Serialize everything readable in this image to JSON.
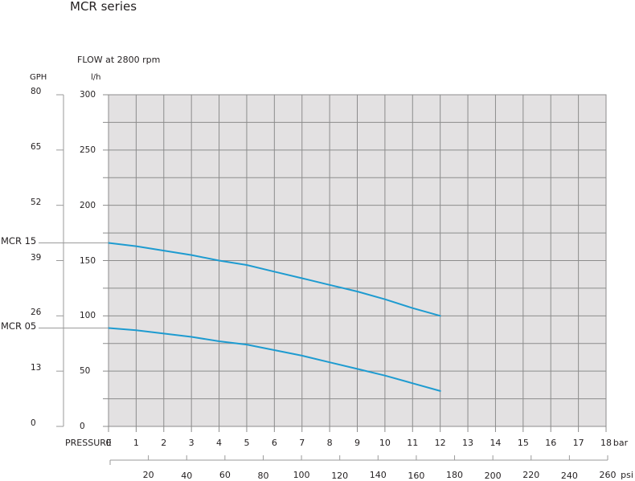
{
  "header": {
    "title": "MCR series",
    "subtitle": "FLOW at 2800 rpm"
  },
  "axes": {
    "gph_unit": "GPH",
    "lh_unit": "l/h",
    "pressure_label": "PRESSURE",
    "bar_unit": "bar",
    "psi_unit": "psi"
  },
  "colors": {
    "plot_bg": "#e3e1e2",
    "grid": "#8c8c8c",
    "curve": "#1e9bd0",
    "axis": "#9a9a9a"
  },
  "chart_data": {
    "type": "line",
    "title": "MCR series",
    "subtitle": "FLOW at 2800 rpm",
    "xlabel": "PRESSURE (bar)",
    "ylabel": "l/h",
    "secondary_ylabel": "GPH",
    "secondary_xlabel": "psi",
    "xlim": [
      0,
      18
    ],
    "ylim": [
      0,
      300
    ],
    "grid": true,
    "x_ticks": [
      0,
      1,
      2,
      3,
      4,
      5,
      6,
      7,
      8,
      9,
      10,
      11,
      12,
      13,
      14,
      15,
      16,
      17,
      18
    ],
    "y_ticks_lh": [
      0,
      50,
      100,
      150,
      200,
      250,
      300
    ],
    "y_ticks_gph": [
      {
        "label": "0",
        "lh": 0
      },
      {
        "label": "13",
        "lh": 50
      },
      {
        "label": "26",
        "lh": 100
      },
      {
        "label": "39",
        "lh": 150
      },
      {
        "label": "52",
        "lh": 200
      },
      {
        "label": "65",
        "lh": 250
      },
      {
        "label": "80",
        "lh": 300
      }
    ],
    "psi_ticks": [
      20,
      40,
      60,
      80,
      100,
      120,
      140,
      160,
      180,
      200,
      220,
      240,
      260
    ],
    "x": [
      0,
      1,
      2,
      3,
      4,
      5,
      6,
      7,
      8,
      9,
      10,
      11,
      12
    ],
    "series": [
      {
        "name": "MCR 15",
        "values": [
          166,
          163,
          159,
          155,
          150,
          146,
          140,
          134,
          128,
          122,
          115,
          107,
          100
        ]
      },
      {
        "name": "MCR 05",
        "values": [
          89,
          87,
          84,
          81,
          77,
          74,
          69,
          64,
          58,
          52,
          46,
          39,
          32
        ]
      }
    ]
  }
}
